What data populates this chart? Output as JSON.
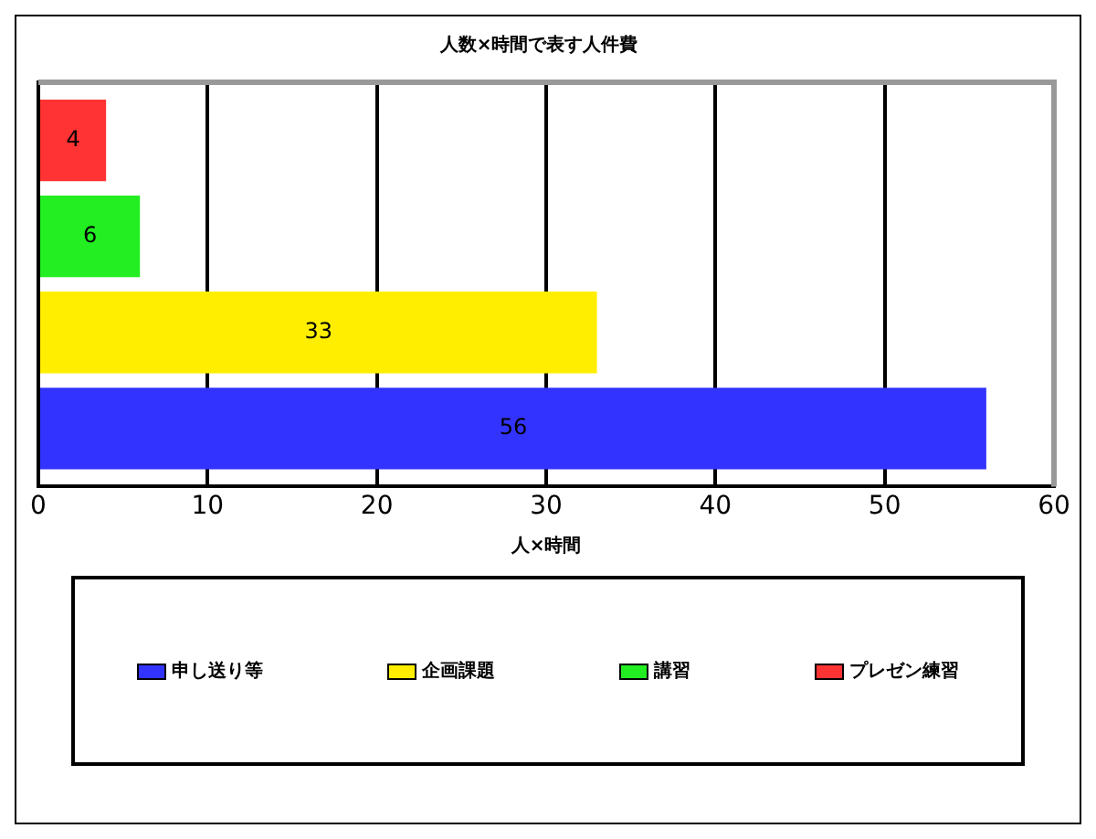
{
  "chart_data": {
    "type": "bar",
    "orientation": "horizontal",
    "title": "人数×時間で表す人件費",
    "xlabel": "人×時間",
    "categories": [
      null
    ],
    "series": [
      {
        "name": "申し送り等",
        "color": "#3333ff",
        "values": [
          56
        ]
      },
      {
        "name": "企画課題",
        "color": "#ffee00",
        "values": [
          33
        ]
      },
      {
        "name": "講習",
        "color": "#22ee22",
        "values": [
          6
        ]
      },
      {
        "name": "プレゼン練習",
        "color": "#ff3333",
        "values": [
          4
        ]
      }
    ],
    "xlim": [
      0,
      60
    ],
    "xticks": [
      0,
      10,
      20,
      30,
      40,
      50,
      60
    ],
    "grid": "x",
    "legend": "bottom",
    "data_labels": true
  }
}
